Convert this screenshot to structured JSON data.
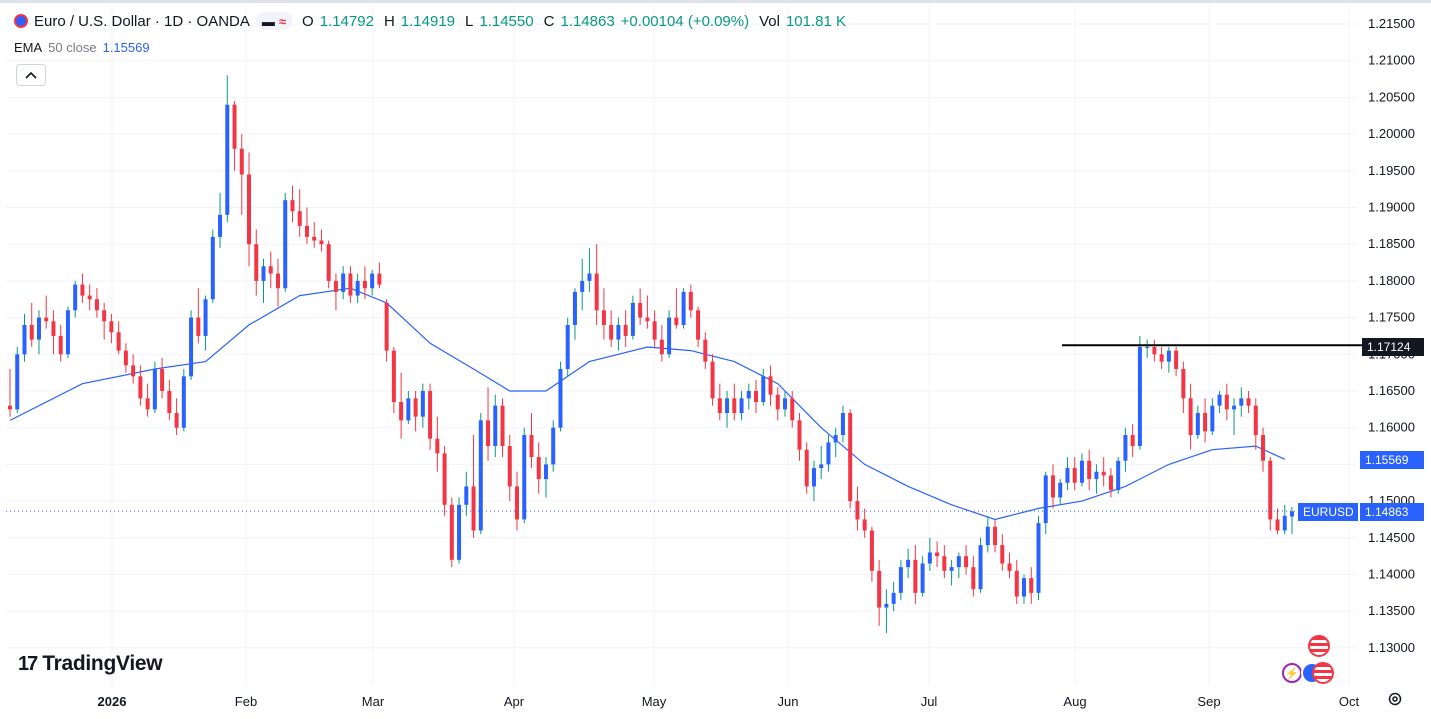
{
  "legend": {
    "title": "Euro / U.S. Dollar · 1D · OANDA",
    "o_label": "O",
    "o_value": "1.14792",
    "h_label": "H",
    "h_value": "1.14919",
    "l_label": "L",
    "l_value": "1.14550",
    "c_label": "C",
    "c_value": "1.14863",
    "change": "+0.00104 (+0.09%)",
    "vol_label": "Vol",
    "vol_value": "101.81 K",
    "pill_dash": "▬",
    "pill_wave": "≈"
  },
  "indicator": {
    "name": "EMA",
    "params": "50 close",
    "value": "1.15569"
  },
  "collapse_icon": "chevron-up-icon",
  "brand": {
    "name": "TradingView",
    "mark": "17"
  },
  "tags": {
    "level": "1.17124",
    "ema": "1.15569",
    "symbol": "EURUSD",
    "last": "1.14863"
  },
  "colors": {
    "up": "#2962ff",
    "down": "#f23645",
    "ema": "#2962ff",
    "grid": "#f0f3fa",
    "level_line": "#000000",
    "last_price": "#2962ff"
  },
  "chart_data": {
    "type": "candlestick",
    "symbol": "EURUSD",
    "interval": "1D",
    "ylim": [
      1.1275,
      1.2175
    ],
    "y_ticks": [
      "1.21500",
      "1.21000",
      "1.20500",
      "1.20000",
      "1.19500",
      "1.19000",
      "1.18500",
      "1.18000",
      "1.17500",
      "1.17000",
      "1.16500",
      "1.16000",
      "1.15500",
      "1.15000",
      "1.14500",
      "1.14000",
      "1.13500",
      "1.13000"
    ],
    "x_ticks": [
      "2026",
      "Feb",
      "Mar",
      "Apr",
      "May",
      "Jun",
      "Jul",
      "Aug",
      "Sep",
      "Oct"
    ],
    "horizontal_level": 1.17124,
    "last_price": 1.14863,
    "candles": [
      [
        1.163,
        1.168,
        1.1615,
        1.1625
      ],
      [
        1.1625,
        1.171,
        1.162,
        1.17
      ],
      [
        1.17,
        1.1755,
        1.169,
        1.174
      ],
      [
        1.174,
        1.177,
        1.171,
        1.172
      ],
      [
        1.172,
        1.176,
        1.17,
        1.175
      ],
      [
        1.175,
        1.178,
        1.1735,
        1.1745
      ],
      [
        1.1745,
        1.176,
        1.17,
        1.1725
      ],
      [
        1.1725,
        1.174,
        1.169,
        1.17
      ],
      [
        1.17,
        1.1765,
        1.1695,
        1.176
      ],
      [
        1.176,
        1.18,
        1.175,
        1.1795
      ],
      [
        1.1795,
        1.181,
        1.177,
        1.178
      ],
      [
        1.178,
        1.1795,
        1.176,
        1.1775
      ],
      [
        1.1775,
        1.179,
        1.175,
        1.176
      ],
      [
        1.176,
        1.177,
        1.172,
        1.1745
      ],
      [
        1.1745,
        1.1755,
        1.1715,
        1.173
      ],
      [
        1.173,
        1.1745,
        1.17,
        1.1705
      ],
      [
        1.1705,
        1.1715,
        1.1675,
        1.1685
      ],
      [
        1.1685,
        1.17,
        1.166,
        1.167
      ],
      [
        1.167,
        1.1685,
        1.163,
        1.164
      ],
      [
        1.164,
        1.166,
        1.1615,
        1.1625
      ],
      [
        1.1625,
        1.169,
        1.162,
        1.168
      ],
      [
        1.168,
        1.1695,
        1.164,
        1.165
      ],
      [
        1.165,
        1.1665,
        1.161,
        1.162
      ],
      [
        1.162,
        1.164,
        1.159,
        1.16
      ],
      [
        1.16,
        1.168,
        1.1595,
        1.167
      ],
      [
        1.167,
        1.176,
        1.1665,
        1.175
      ],
      [
        1.175,
        1.179,
        1.1715,
        1.1725
      ],
      [
        1.1725,
        1.178,
        1.1705,
        1.1775
      ],
      [
        1.1775,
        1.187,
        1.177,
        1.186
      ],
      [
        1.186,
        1.192,
        1.1845,
        1.189
      ],
      [
        1.189,
        1.208,
        1.188,
        1.204
      ],
      [
        1.204,
        1.2045,
        1.195,
        1.198
      ],
      [
        1.198,
        1.2,
        1.189,
        1.1945
      ],
      [
        1.1945,
        1.1975,
        1.182,
        1.185
      ],
      [
        1.185,
        1.187,
        1.178,
        1.18
      ],
      [
        1.18,
        1.183,
        1.177,
        1.182
      ],
      [
        1.182,
        1.184,
        1.179,
        1.181
      ],
      [
        1.181,
        1.183,
        1.1765,
        1.179
      ],
      [
        1.179,
        1.192,
        1.1785,
        1.191
      ],
      [
        1.191,
        1.193,
        1.188,
        1.1895
      ],
      [
        1.1895,
        1.1925,
        1.186,
        1.1875
      ],
      [
        1.1875,
        1.19,
        1.185,
        1.186
      ],
      [
        1.186,
        1.188,
        1.1845,
        1.1855
      ],
      [
        1.1855,
        1.187,
        1.184,
        1.185
      ],
      [
        1.185,
        1.1855,
        1.179,
        1.18
      ],
      [
        1.18,
        1.181,
        1.176,
        1.1785
      ],
      [
        1.1785,
        1.182,
        1.1775,
        1.181
      ],
      [
        1.181,
        1.182,
        1.177,
        1.178
      ],
      [
        1.178,
        1.181,
        1.177,
        1.18
      ],
      [
        1.18,
        1.182,
        1.1775,
        1.179
      ],
      [
        1.179,
        1.1815,
        1.178,
        1.181
      ],
      [
        1.181,
        1.1825,
        1.179,
        1.1795
      ],
      [
        1.177,
        1.1775,
        1.169,
        1.1705
      ],
      [
        1.1705,
        1.171,
        1.162,
        1.1635
      ],
      [
        1.1635,
        1.1675,
        1.1585,
        1.161
      ],
      [
        1.161,
        1.165,
        1.1605,
        1.164
      ],
      [
        1.164,
        1.165,
        1.1595,
        1.1615
      ],
      [
        1.1615,
        1.166,
        1.16,
        1.165
      ],
      [
        1.165,
        1.166,
        1.157,
        1.1585
      ],
      [
        1.1585,
        1.1615,
        1.154,
        1.1565
      ],
      [
        1.1565,
        1.1575,
        1.148,
        1.1495
      ],
      [
        1.1495,
        1.1505,
        1.141,
        1.142
      ],
      [
        1.142,
        1.1505,
        1.1415,
        1.1495
      ],
      [
        1.1495,
        1.154,
        1.148,
        1.152
      ],
      [
        1.152,
        1.159,
        1.145,
        1.146
      ],
      [
        1.146,
        1.162,
        1.1455,
        1.161
      ],
      [
        1.161,
        1.1655,
        1.1555,
        1.1575
      ],
      [
        1.1575,
        1.1645,
        1.156,
        1.163
      ],
      [
        1.163,
        1.164,
        1.156,
        1.1575
      ],
      [
        1.1575,
        1.159,
        1.15,
        1.152
      ],
      [
        1.152,
        1.154,
        1.146,
        1.1475
      ],
      [
        1.1475,
        1.16,
        1.147,
        1.159
      ],
      [
        1.159,
        1.162,
        1.1545,
        1.156
      ],
      [
        1.156,
        1.158,
        1.151,
        1.153
      ],
      [
        1.153,
        1.156,
        1.1505,
        1.155
      ],
      [
        1.155,
        1.161,
        1.154,
        1.16
      ],
      [
        1.16,
        1.169,
        1.1595,
        1.168
      ],
      [
        1.168,
        1.175,
        1.167,
        1.174
      ],
      [
        1.174,
        1.179,
        1.172,
        1.1785
      ],
      [
        1.1785,
        1.183,
        1.176,
        1.18
      ],
      [
        1.18,
        1.1845,
        1.1785,
        1.181
      ],
      [
        1.181,
        1.185,
        1.174,
        1.176
      ],
      [
        1.176,
        1.179,
        1.172,
        1.174
      ],
      [
        1.174,
        1.176,
        1.171,
        1.172
      ],
      [
        1.172,
        1.175,
        1.1705,
        1.174
      ],
      [
        1.174,
        1.176,
        1.171,
        1.1725
      ],
      [
        1.1725,
        1.178,
        1.172,
        1.177
      ],
      [
        1.177,
        1.179,
        1.174,
        1.175
      ],
      [
        1.175,
        1.178,
        1.1735,
        1.1745
      ],
      [
        1.1745,
        1.176,
        1.171,
        1.172
      ],
      [
        1.172,
        1.174,
        1.169,
        1.17
      ],
      [
        1.17,
        1.176,
        1.1695,
        1.175
      ],
      [
        1.175,
        1.179,
        1.1735,
        1.174
      ],
      [
        1.174,
        1.179,
        1.1735,
        1.1785
      ],
      [
        1.1785,
        1.1795,
        1.175,
        1.176
      ],
      [
        1.176,
        1.1765,
        1.171,
        1.172
      ],
      [
        1.172,
        1.173,
        1.168,
        1.169
      ],
      [
        1.169,
        1.17,
        1.163,
        1.164
      ],
      [
        1.164,
        1.166,
        1.161,
        1.162
      ],
      [
        1.162,
        1.165,
        1.16,
        1.164
      ],
      [
        1.164,
        1.166,
        1.161,
        1.162
      ],
      [
        1.162,
        1.165,
        1.161,
        1.164
      ],
      [
        1.164,
        1.166,
        1.1625,
        1.165
      ],
      [
        1.165,
        1.1665,
        1.162,
        1.1635
      ],
      [
        1.1635,
        1.168,
        1.163,
        1.167
      ],
      [
        1.167,
        1.1685,
        1.163,
        1.1645
      ],
      [
        1.1645,
        1.1655,
        1.161,
        1.1625
      ],
      [
        1.1625,
        1.165,
        1.1615,
        1.164
      ],
      [
        1.164,
        1.165,
        1.16,
        1.161
      ],
      [
        1.161,
        1.162,
        1.1555,
        1.157
      ],
      [
        1.157,
        1.158,
        1.151,
        1.152
      ],
      [
        1.152,
        1.1555,
        1.15,
        1.1545
      ],
      [
        1.1545,
        1.1575,
        1.153,
        1.155
      ],
      [
        1.155,
        1.159,
        1.154,
        1.158
      ],
      [
        1.158,
        1.16,
        1.156,
        1.159
      ],
      [
        1.159,
        1.163,
        1.158,
        1.162
      ],
      [
        1.162,
        1.1625,
        1.149,
        1.15
      ],
      [
        1.15,
        1.152,
        1.146,
        1.1475
      ],
      [
        1.1475,
        1.149,
        1.145,
        1.146
      ],
      [
        1.146,
        1.1465,
        1.139,
        1.1405
      ],
      [
        1.1405,
        1.142,
        1.133,
        1.1355
      ],
      [
        1.1355,
        1.138,
        1.132,
        1.136
      ],
      [
        1.136,
        1.139,
        1.135,
        1.1375
      ],
      [
        1.1375,
        1.142,
        1.1365,
        1.141
      ],
      [
        1.141,
        1.1435,
        1.1395,
        1.142
      ],
      [
        1.142,
        1.144,
        1.136,
        1.1375
      ],
      [
        1.1375,
        1.1425,
        1.137,
        1.1415
      ],
      [
        1.1415,
        1.145,
        1.1405,
        1.143
      ],
      [
        1.143,
        1.1445,
        1.141,
        1.1425
      ],
      [
        1.1425,
        1.144,
        1.1395,
        1.1405
      ],
      [
        1.1405,
        1.142,
        1.1385,
        1.141
      ],
      [
        1.141,
        1.143,
        1.1395,
        1.1425
      ],
      [
        1.1425,
        1.144,
        1.14,
        1.141
      ],
      [
        1.141,
        1.1425,
        1.137,
        1.138
      ],
      [
        1.138,
        1.145,
        1.1375,
        1.144
      ],
      [
        1.144,
        1.148,
        1.143,
        1.1465
      ],
      [
        1.1465,
        1.1475,
        1.143,
        1.144
      ],
      [
        1.144,
        1.1455,
        1.1405,
        1.1415
      ],
      [
        1.1415,
        1.143,
        1.1395,
        1.1405
      ],
      [
        1.1405,
        1.142,
        1.136,
        1.137
      ],
      [
        1.137,
        1.14,
        1.136,
        1.1395
      ],
      [
        1.1395,
        1.141,
        1.136,
        1.1375
      ],
      [
        1.1375,
        1.148,
        1.1365,
        1.147
      ],
      [
        1.147,
        1.154,
        1.1455,
        1.1535
      ],
      [
        1.1535,
        1.155,
        1.149,
        1.1505
      ],
      [
        1.1505,
        1.153,
        1.1495,
        1.1525
      ],
      [
        1.1525,
        1.156,
        1.1515,
        1.1545
      ],
      [
        1.1545,
        1.156,
        1.1515,
        1.1525
      ],
      [
        1.1525,
        1.1565,
        1.152,
        1.1555
      ],
      [
        1.1555,
        1.157,
        1.1515,
        1.153
      ],
      [
        1.153,
        1.155,
        1.151,
        1.154
      ],
      [
        1.154,
        1.156,
        1.152,
        1.1535
      ],
      [
        1.1535,
        1.1545,
        1.1505,
        1.1515
      ],
      [
        1.1515,
        1.156,
        1.151,
        1.1555
      ],
      [
        1.1555,
        1.16,
        1.154,
        1.159
      ],
      [
        1.159,
        1.1605,
        1.156,
        1.1575
      ],
      [
        1.1575,
        1.1725,
        1.157,
        1.171
      ],
      [
        1.171,
        1.172,
        1.1695,
        1.171
      ],
      [
        1.171,
        1.172,
        1.169,
        1.17
      ],
      [
        1.17,
        1.171,
        1.168,
        1.169
      ],
      [
        1.169,
        1.171,
        1.1675,
        1.1705
      ],
      [
        1.1705,
        1.171,
        1.167,
        1.168
      ],
      [
        1.168,
        1.169,
        1.162,
        1.164
      ],
      [
        1.164,
        1.166,
        1.157,
        1.159
      ],
      [
        1.159,
        1.163,
        1.1585,
        1.162
      ],
      [
        1.162,
        1.164,
        1.158,
        1.1595
      ],
      [
        1.1595,
        1.164,
        1.159,
        1.163
      ],
      [
        1.163,
        1.165,
        1.162,
        1.1645
      ],
      [
        1.1645,
        1.166,
        1.161,
        1.1625
      ],
      [
        1.1625,
        1.164,
        1.159,
        1.163
      ],
      [
        1.163,
        1.1655,
        1.1615,
        1.164
      ],
      [
        1.164,
        1.165,
        1.162,
        1.163
      ],
      [
        1.163,
        1.164,
        1.157,
        1.159
      ],
      [
        1.159,
        1.16,
        1.154,
        1.1555
      ],
      [
        1.1555,
        1.156,
        1.146,
        1.1475
      ],
      [
        1.1475,
        1.149,
        1.1455,
        1.146
      ],
      [
        1.146,
        1.1495,
        1.1455,
        1.148
      ],
      [
        1.1479,
        1.1492,
        1.1455,
        1.1486
      ]
    ],
    "ema50": [
      [
        0,
        1.161
      ],
      [
        10,
        1.166
      ],
      [
        20,
        1.168
      ],
      [
        27,
        1.169
      ],
      [
        33,
        1.174
      ],
      [
        40,
        1.178
      ],
      [
        47,
        1.179
      ],
      [
        52,
        1.177
      ],
      [
        58,
        1.1715
      ],
      [
        64,
        1.168
      ],
      [
        69,
        1.165
      ],
      [
        74,
        1.165
      ],
      [
        80,
        1.169
      ],
      [
        88,
        1.171
      ],
      [
        94,
        1.1705
      ],
      [
        100,
        1.169
      ],
      [
        106,
        1.166
      ],
      [
        112,
        1.16
      ],
      [
        118,
        1.155
      ],
      [
        124,
        1.152
      ],
      [
        130,
        1.1495
      ],
      [
        136,
        1.1475
      ],
      [
        142,
        1.149
      ],
      [
        148,
        1.15
      ],
      [
        154,
        1.152
      ],
      [
        160,
        1.155
      ],
      [
        166,
        1.157
      ],
      [
        172,
        1.1575
      ],
      [
        176,
        1.1557
      ]
    ]
  }
}
